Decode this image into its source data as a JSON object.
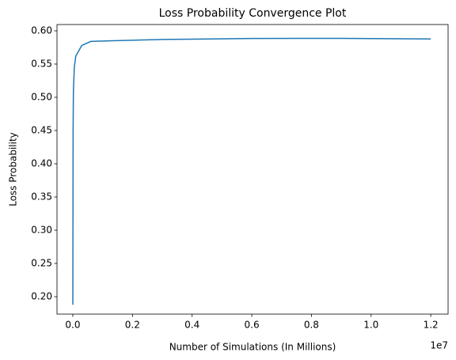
{
  "chart_data": {
    "type": "line",
    "title": "Loss Probability Convergence Plot",
    "x_label": "Number of Simulations (In Millions)",
    "y_label": "Loss Probability",
    "x_offset_label": "1e7",
    "x": [
      1000,
      10000,
      20000,
      50000,
      100000,
      300000,
      600000,
      1200000,
      3000000,
      6000000,
      9000000,
      12000000
    ],
    "series": [
      {
        "name": "Loss Probability",
        "color": "#1f77b4",
        "values": [
          0.188,
          0.45,
          0.51,
          0.545,
          0.562,
          0.578,
          0.584,
          0.585,
          0.587,
          0.5885,
          0.5887,
          0.5878
        ]
      }
    ],
    "xlim": [
      -530000,
      12580000
    ],
    "xticks": [
      {
        "value": 0,
        "label": "0.0"
      },
      {
        "value": 2000000,
        "label": "0.2"
      },
      {
        "value": 4000000,
        "label": "0.4"
      },
      {
        "value": 6000000,
        "label": "0.6"
      },
      {
        "value": 8000000,
        "label": "0.8"
      },
      {
        "value": 10000000,
        "label": "1.0"
      },
      {
        "value": 12000000,
        "label": "1.2"
      }
    ],
    "ylim": [
      0.1738,
      0.6095
    ],
    "yticks": [
      {
        "value": 0.2,
        "label": "0.20"
      },
      0.25,
      {
        "value": 0.3,
        "label": "0.30"
      },
      0.35,
      {
        "value": 0.4,
        "label": "0.40"
      },
      0.45,
      {
        "value": 0.5,
        "label": "0.50"
      },
      0.55,
      {
        "value": 0.6,
        "label": "0.60"
      }
    ],
    "grid": false
  }
}
